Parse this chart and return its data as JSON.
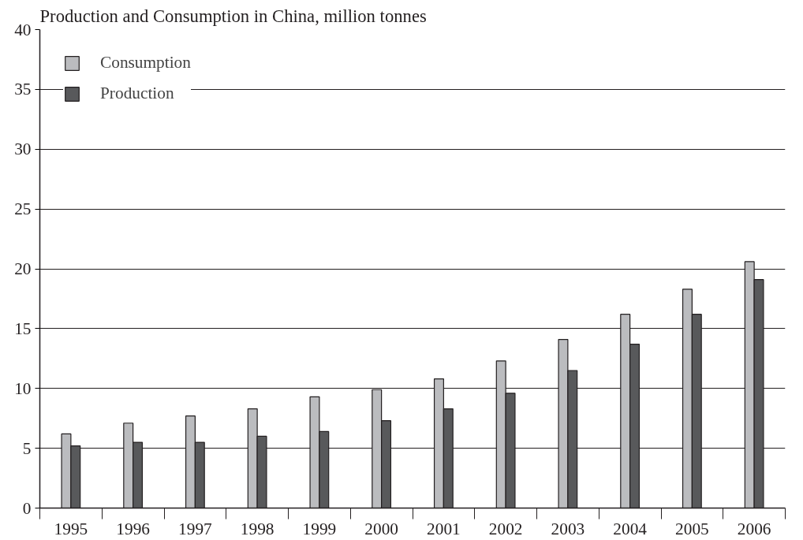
{
  "chart_data": {
    "type": "bar",
    "title": "Production and Consumption in China, million tonnes",
    "categories": [
      "1995",
      "1996",
      "1997",
      "1998",
      "1999",
      "2000",
      "2001",
      "2002",
      "2003",
      "2004",
      "2005",
      "2006"
    ],
    "series": [
      {
        "name": "Consumption",
        "color": "#bbbcbf",
        "values": [
          6.2,
          7.1,
          7.7,
          8.3,
          9.3,
          9.9,
          10.8,
          12.3,
          14.1,
          16.2,
          18.3,
          20.6
        ]
      },
      {
        "name": "Production",
        "color": "#58595b",
        "values": [
          5.2,
          5.5,
          5.5,
          6.0,
          6.4,
          7.3,
          8.3,
          9.6,
          11.5,
          13.7,
          16.2,
          19.1
        ]
      }
    ],
    "ylim": [
      0,
      40
    ],
    "yticks": [
      0,
      5,
      10,
      15,
      20,
      25,
      30,
      35,
      40
    ],
    "grid": "y",
    "legend": "top left"
  }
}
